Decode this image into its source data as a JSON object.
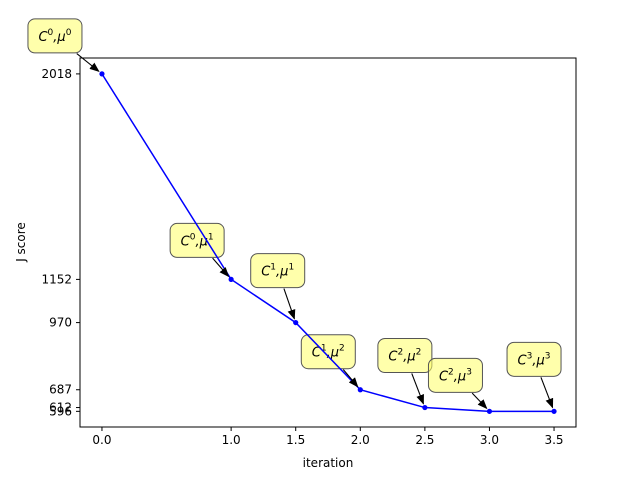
{
  "chart_data": {
    "type": "line",
    "title": "",
    "xlabel": "iteration",
    "ylabel": "J score",
    "x": [
      0.0,
      1.0,
      1.5,
      2.0,
      2.5,
      3.0,
      3.5
    ],
    "y": [
      2018,
      1152,
      970,
      687,
      612,
      596,
      596
    ],
    "xticks": [
      "0.0",
      "1.0",
      "1.5",
      "2.0",
      "2.5",
      "3.0",
      "3.5"
    ],
    "yticks": [
      "2018",
      "1152",
      "970",
      "687",
      "612",
      "596"
    ],
    "xlim": [
      -0.17,
      3.67
    ],
    "ylim": [
      530,
      2085
    ],
    "grid": false,
    "series": [
      {
        "values": [
          2018,
          1152,
          970,
          687,
          612,
          596,
          596
        ],
        "color": "#0000ff"
      }
    ],
    "annotations": [
      {
        "base": "C",
        "sup1": "0",
        "sep": ",",
        "mu": "μ",
        "sup2": "0"
      },
      {
        "base": "C",
        "sup1": "0",
        "sep": ",",
        "mu": "μ",
        "sup2": "1"
      },
      {
        "base": "C",
        "sup1": "1",
        "sep": ",",
        "mu": "μ",
        "sup2": "1"
      },
      {
        "base": "C",
        "sup1": "1",
        "sep": ",",
        "mu": "μ",
        "sup2": "2"
      },
      {
        "base": "C",
        "sup1": "2",
        "sep": ",",
        "mu": "μ",
        "sup2": "2"
      },
      {
        "base": "C",
        "sup1": "2",
        "sep": ",",
        "mu": "μ",
        "sup2": "3"
      },
      {
        "base": "C",
        "sup1": "3",
        "sep": ",",
        "mu": "μ",
        "sup2": "3"
      }
    ],
    "annotation_box_color": "#ffff66",
    "line_color": "#0000ff"
  }
}
